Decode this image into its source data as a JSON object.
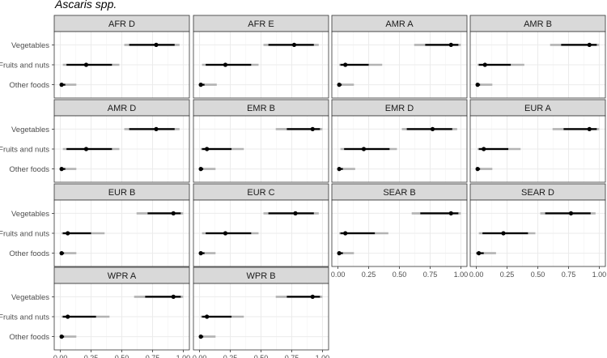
{
  "chart_data": {
    "type": "interval",
    "title": "Ascaris spp.",
    "categories": [
      "Vegetables",
      "Fruits and nuts",
      "Other foods"
    ],
    "xlim": [
      0,
      1
    ],
    "x_ticks": [
      "0.00",
      "0.25",
      "0.50",
      "0.75",
      "1.00"
    ],
    "grid": true,
    "panels": [
      {
        "label": "AFR D",
        "rows": [
          {
            "category": "Vegetables",
            "lo95": 0.52,
            "lo50": 0.56,
            "median": 0.78,
            "hi50": 0.93,
            "hi95": 0.97
          },
          {
            "category": "Fruits and nuts",
            "lo95": 0.02,
            "lo50": 0.05,
            "median": 0.21,
            "hi50": 0.42,
            "hi95": 0.48
          },
          {
            "category": "Other foods",
            "lo95": 0.0,
            "lo50": 0.0,
            "median": 0.01,
            "hi50": 0.04,
            "hi95": 0.13
          }
        ]
      },
      {
        "label": "AFR E",
        "rows": [
          {
            "category": "Vegetables",
            "lo95": 0.52,
            "lo50": 0.56,
            "median": 0.77,
            "hi50": 0.93,
            "hi95": 0.97
          },
          {
            "category": "Fruits and nuts",
            "lo95": 0.02,
            "lo50": 0.05,
            "median": 0.21,
            "hi50": 0.42,
            "hi95": 0.48
          },
          {
            "category": "Other foods",
            "lo95": 0.0,
            "lo50": 0.0,
            "median": 0.01,
            "hi50": 0.04,
            "hi95": 0.14
          }
        ]
      },
      {
        "label": "AMR A",
        "rows": [
          {
            "category": "Vegetables",
            "lo95": 0.62,
            "lo50": 0.71,
            "median": 0.92,
            "hi50": 0.98,
            "hi95": 1.0
          },
          {
            "category": "Fruits and nuts",
            "lo95": 0.01,
            "lo50": 0.02,
            "median": 0.06,
            "hi50": 0.25,
            "hi95": 0.36
          },
          {
            "category": "Other foods",
            "lo95": 0.0,
            "lo50": 0.0,
            "median": 0.01,
            "hi50": 0.03,
            "hi95": 0.13
          }
        ]
      },
      {
        "label": "AMR B",
        "rows": [
          {
            "category": "Vegetables",
            "lo95": 0.6,
            "lo50": 0.69,
            "median": 0.92,
            "hi50": 0.98,
            "hi95": 1.0
          },
          {
            "category": "Fruits and nuts",
            "lo95": 0.01,
            "lo50": 0.02,
            "median": 0.07,
            "hi50": 0.28,
            "hi95": 0.39
          },
          {
            "category": "Other foods",
            "lo95": 0.0,
            "lo50": 0.0,
            "median": 0.01,
            "hi50": 0.03,
            "hi95": 0.13
          }
        ]
      },
      {
        "label": "AMR D",
        "rows": [
          {
            "category": "Vegetables",
            "lo95": 0.52,
            "lo50": 0.56,
            "median": 0.78,
            "hi50": 0.93,
            "hi95": 0.97
          },
          {
            "category": "Fruits and nuts",
            "lo95": 0.02,
            "lo50": 0.05,
            "median": 0.21,
            "hi50": 0.42,
            "hi95": 0.48
          },
          {
            "category": "Other foods",
            "lo95": 0.0,
            "lo50": 0.0,
            "median": 0.01,
            "hi50": 0.04,
            "hi95": 0.13
          }
        ]
      },
      {
        "label": "EMR B",
        "rows": [
          {
            "category": "Vegetables",
            "lo95": 0.62,
            "lo50": 0.71,
            "median": 0.92,
            "hi50": 0.98,
            "hi95": 1.0
          },
          {
            "category": "Fruits and nuts",
            "lo95": 0.01,
            "lo50": 0.02,
            "median": 0.06,
            "hi50": 0.26,
            "hi95": 0.36
          },
          {
            "category": "Other foods",
            "lo95": 0.0,
            "lo50": 0.0,
            "median": 0.01,
            "hi50": 0.03,
            "hi95": 0.13
          }
        ]
      },
      {
        "label": "EMR D",
        "rows": [
          {
            "category": "Vegetables",
            "lo95": 0.52,
            "lo50": 0.56,
            "median": 0.77,
            "hi50": 0.93,
            "hi95": 0.97
          },
          {
            "category": "Fruits and nuts",
            "lo95": 0.02,
            "lo50": 0.05,
            "median": 0.21,
            "hi50": 0.42,
            "hi95": 0.48
          },
          {
            "category": "Other foods",
            "lo95": 0.0,
            "lo50": 0.0,
            "median": 0.01,
            "hi50": 0.04,
            "hi95": 0.14
          }
        ]
      },
      {
        "label": "EUR A",
        "rows": [
          {
            "category": "Vegetables",
            "lo95": 0.62,
            "lo50": 0.71,
            "median": 0.92,
            "hi50": 0.98,
            "hi95": 1.0
          },
          {
            "category": "Fruits and nuts",
            "lo95": 0.01,
            "lo50": 0.02,
            "median": 0.06,
            "hi50": 0.26,
            "hi95": 0.36
          },
          {
            "category": "Other foods",
            "lo95": 0.0,
            "lo50": 0.0,
            "median": 0.01,
            "hi50": 0.03,
            "hi95": 0.13
          }
        ]
      },
      {
        "label": "EUR B",
        "rows": [
          {
            "category": "Vegetables",
            "lo95": 0.62,
            "lo50": 0.71,
            "median": 0.92,
            "hi50": 0.98,
            "hi95": 1.0
          },
          {
            "category": "Fruits and nuts",
            "lo95": 0.01,
            "lo50": 0.02,
            "median": 0.06,
            "hi50": 0.25,
            "hi95": 0.36
          },
          {
            "category": "Other foods",
            "lo95": 0.0,
            "lo50": 0.0,
            "median": 0.01,
            "hi50": 0.03,
            "hi95": 0.13
          }
        ]
      },
      {
        "label": "EUR C",
        "rows": [
          {
            "category": "Vegetables",
            "lo95": 0.52,
            "lo50": 0.56,
            "median": 0.78,
            "hi50": 0.93,
            "hi95": 0.97
          },
          {
            "category": "Fruits and nuts",
            "lo95": 0.02,
            "lo50": 0.05,
            "median": 0.21,
            "hi50": 0.42,
            "hi95": 0.48
          },
          {
            "category": "Other foods",
            "lo95": 0.0,
            "lo50": 0.0,
            "median": 0.01,
            "hi50": 0.04,
            "hi95": 0.13
          }
        ]
      },
      {
        "label": "SEAR B",
        "rows": [
          {
            "category": "Vegetables",
            "lo95": 0.6,
            "lo50": 0.67,
            "median": 0.92,
            "hi50": 0.98,
            "hi95": 1.0
          },
          {
            "category": "Fruits and nuts",
            "lo95": 0.01,
            "lo50": 0.02,
            "median": 0.06,
            "hi50": 0.3,
            "hi95": 0.41
          },
          {
            "category": "Other foods",
            "lo95": 0.0,
            "lo50": 0.0,
            "median": 0.01,
            "hi50": 0.04,
            "hi95": 0.13
          }
        ]
      },
      {
        "label": "SEAR D",
        "rows": [
          {
            "category": "Vegetables",
            "lo95": 0.52,
            "lo50": 0.56,
            "median": 0.77,
            "hi50": 0.93,
            "hi95": 0.97
          },
          {
            "category": "Fruits and nuts",
            "lo95": 0.02,
            "lo50": 0.05,
            "median": 0.22,
            "hi50": 0.42,
            "hi95": 0.48
          },
          {
            "category": "Other foods",
            "lo95": 0.0,
            "lo50": 0.0,
            "median": 0.02,
            "hi50": 0.06,
            "hi95": 0.16
          }
        ]
      },
      {
        "label": "WPR A",
        "rows": [
          {
            "category": "Vegetables",
            "lo95": 0.6,
            "lo50": 0.69,
            "median": 0.92,
            "hi50": 0.98,
            "hi95": 1.0
          },
          {
            "category": "Fruits and nuts",
            "lo95": 0.01,
            "lo50": 0.02,
            "median": 0.06,
            "hi50": 0.29,
            "hi95": 0.4
          },
          {
            "category": "Other foods",
            "lo95": 0.0,
            "lo50": 0.0,
            "median": 0.01,
            "hi50": 0.03,
            "hi95": 0.13
          }
        ]
      },
      {
        "label": "WPR B",
        "rows": [
          {
            "category": "Vegetables",
            "lo95": 0.62,
            "lo50": 0.71,
            "median": 0.92,
            "hi50": 0.98,
            "hi95": 1.0
          },
          {
            "category": "Fruits and nuts",
            "lo95": 0.01,
            "lo50": 0.02,
            "median": 0.06,
            "hi50": 0.26,
            "hi95": 0.36
          },
          {
            "category": "Other foods",
            "lo95": 0.0,
            "lo50": 0.0,
            "median": 0.01,
            "hi50": 0.03,
            "hi95": 0.13
          }
        ]
      }
    ]
  },
  "colors": {
    "strip_fill": "#d9d9d9",
    "panel_border": "#333333",
    "grid_major": "#ebebeb",
    "grid_minor": "#f4f4f4",
    "interval_95": "#b3b3b3",
    "interval_50": "#000000",
    "point": "#000000",
    "axis_text": "#4d4d4d",
    "title_text": "#000000"
  }
}
